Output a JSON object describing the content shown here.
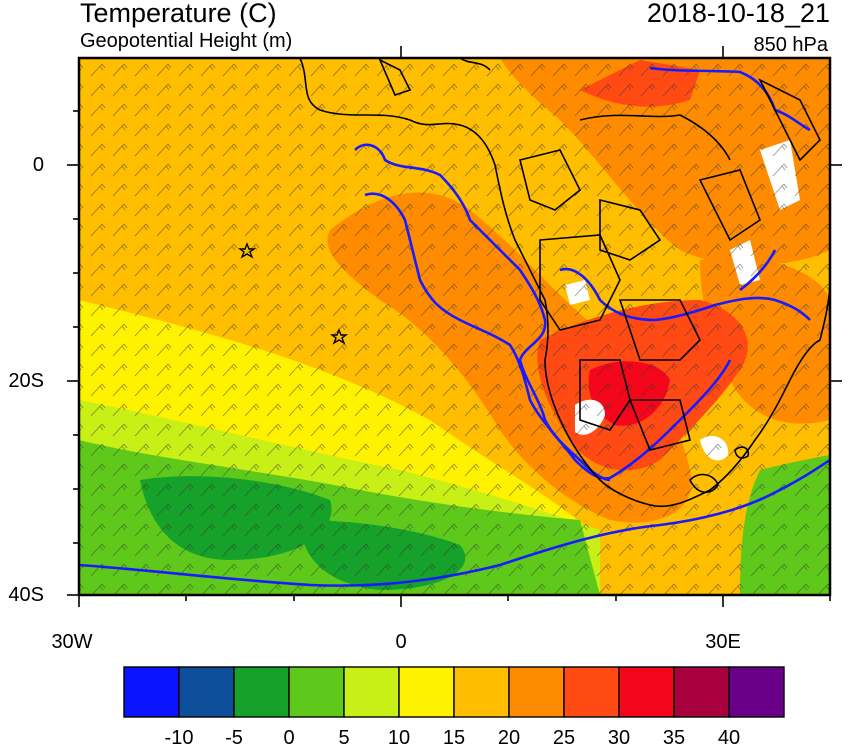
{
  "header": {
    "title": "Temperature (C)",
    "subtitle": "Geopotential Height (m)",
    "datetime": "2018-10-18_21",
    "level": "850 hPa"
  },
  "map": {
    "lat_labels": [
      "0",
      "20S",
      "40S"
    ],
    "lon_labels": [
      "30W",
      "0",
      "30E"
    ],
    "markers": [
      {
        "name": "station-star-1",
        "lon": -14.3,
        "lat": -8.0
      },
      {
        "name": "station-star-2",
        "lon": -5.7,
        "lat": -16.0
      }
    ]
  },
  "colorbar": {
    "colors": [
      "#0a14ff",
      "#0d4f9a",
      "#15a12a",
      "#5ec91a",
      "#c8ef16",
      "#fff200",
      "#ffbe00",
      "#ff8c00",
      "#ff4a14",
      "#f4071b",
      "#a8003e",
      "#6a008a"
    ],
    "labels": [
      "-10",
      "-5",
      "0",
      "5",
      "10",
      "15",
      "20",
      "25",
      "30",
      "35",
      "40"
    ]
  }
}
